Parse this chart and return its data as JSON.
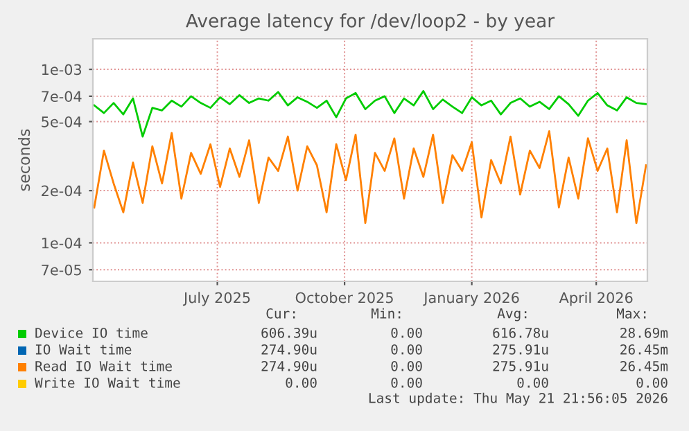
{
  "chart_data": {
    "type": "line",
    "title": "Average latency for /dev/loop2 - by year",
    "ylabel": "seconds",
    "log": "y",
    "grid": true,
    "legend": "bottom",
    "line_style": "solid",
    "marker": "none",
    "xlim": [
      "2025-04-02",
      "2026-05-08"
    ],
    "xticks": [
      {
        "value": "2025-07-01",
        "label": "July 2025"
      },
      {
        "value": "2025-10-01",
        "label": "October 2025"
      },
      {
        "value": "2026-01-01",
        "label": "January 2026"
      },
      {
        "value": "2026-04-01",
        "label": "April 2026"
      }
    ],
    "ylim": [
      6e-05,
      0.0015
    ],
    "yticks": [
      {
        "value": 7e-05,
        "label": "7e-05"
      },
      {
        "value": 0.0001,
        "label": "1e-04"
      },
      {
        "value": 0.0002,
        "label": "2e-04"
      },
      {
        "value": 0.0005,
        "label": "5e-04"
      },
      {
        "value": 0.0007,
        "label": "7e-04"
      },
      {
        "value": 0.001,
        "label": "1e-03"
      }
    ],
    "x": [
      "2025-04-03",
      "2025-04-10",
      "2025-04-17",
      "2025-04-24",
      "2025-05-01",
      "2025-05-08",
      "2025-05-15",
      "2025-05-22",
      "2025-05-29",
      "2025-06-05",
      "2025-06-12",
      "2025-06-19",
      "2025-06-26",
      "2025-07-03",
      "2025-07-10",
      "2025-07-17",
      "2025-07-24",
      "2025-07-31",
      "2025-08-07",
      "2025-08-14",
      "2025-08-21",
      "2025-08-28",
      "2025-09-04",
      "2025-09-11",
      "2025-09-18",
      "2025-09-25",
      "2025-10-02",
      "2025-10-09",
      "2025-10-16",
      "2025-10-23",
      "2025-10-30",
      "2025-11-06",
      "2025-11-13",
      "2025-11-20",
      "2025-11-27",
      "2025-12-04",
      "2025-12-11",
      "2025-12-18",
      "2025-12-25",
      "2026-01-01",
      "2026-01-08",
      "2026-01-15",
      "2026-01-22",
      "2026-01-29",
      "2026-02-05",
      "2026-02-12",
      "2026-02-19",
      "2026-02-26",
      "2026-03-05",
      "2026-03-12",
      "2026-03-19",
      "2026-03-26",
      "2026-04-02",
      "2026-04-09",
      "2026-04-16",
      "2026-04-23",
      "2026-04-30",
      "2026-05-07"
    ],
    "series": [
      {
        "name": "Device IO time",
        "color": "#00cc00",
        "values": [
          0.00062,
          0.00056,
          0.00064,
          0.00055,
          0.00068,
          0.00041,
          0.0006,
          0.00058,
          0.00066,
          0.00061,
          0.0007,
          0.00064,
          0.0006,
          0.00069,
          0.00063,
          0.00071,
          0.00064,
          0.00068,
          0.00066,
          0.00074,
          0.00062,
          0.00069,
          0.00065,
          0.0006,
          0.00066,
          0.00053,
          0.00068,
          0.00073,
          0.00059,
          0.00066,
          0.0007,
          0.00056,
          0.00068,
          0.00062,
          0.00075,
          0.00059,
          0.00067,
          0.00061,
          0.00056,
          0.00069,
          0.00062,
          0.00066,
          0.00055,
          0.00064,
          0.00068,
          0.00061,
          0.00065,
          0.00059,
          0.0007,
          0.00063,
          0.00054,
          0.00066,
          0.00073,
          0.00062,
          0.00058,
          0.00069,
          0.00064,
          0.00063
        ]
      },
      {
        "name": "IO Wait time",
        "color": "#0066b3",
        "values": [
          null,
          null,
          null,
          null,
          null,
          null,
          null,
          null,
          null,
          null,
          null,
          null,
          null,
          null,
          null,
          null,
          null,
          null,
          null,
          null,
          null,
          null,
          null,
          null,
          null,
          null,
          null,
          null,
          null,
          null,
          null,
          null,
          null,
          null,
          null,
          null,
          null,
          null,
          null,
          null,
          null,
          null,
          null,
          null,
          null,
          null,
          null,
          null,
          null,
          null,
          null,
          null,
          null,
          null,
          null,
          null,
          null,
          null
        ]
      },
      {
        "name": "Read IO Wait time",
        "color": "#ff8000",
        "values": [
          0.00016,
          0.00034,
          0.00022,
          0.00015,
          0.00029,
          0.00017,
          0.00036,
          0.00022,
          0.00043,
          0.00018,
          0.00033,
          0.00025,
          0.00037,
          0.00021,
          0.00035,
          0.00024,
          0.00039,
          0.00017,
          0.00031,
          0.00026,
          0.00041,
          0.0002,
          0.00036,
          0.00028,
          0.00015,
          0.00037,
          0.00023,
          0.00042,
          0.00013,
          0.00033,
          0.00026,
          0.0004,
          0.00018,
          0.00035,
          0.00024,
          0.00042,
          0.00017,
          0.00032,
          0.00026,
          0.00038,
          0.00014,
          0.0003,
          0.00022,
          0.00041,
          0.00019,
          0.00034,
          0.00027,
          0.00044,
          0.00016,
          0.00031,
          0.00018,
          0.0004,
          0.00026,
          0.00035,
          0.00015,
          0.00039,
          0.00013,
          0.00028
        ]
      },
      {
        "name": "Write IO Wait time",
        "color": "#ffcc00",
        "values": [
          null,
          null,
          null,
          null,
          null,
          null,
          null,
          null,
          null,
          null,
          null,
          null,
          null,
          null,
          null,
          null,
          null,
          null,
          null,
          null,
          null,
          null,
          null,
          null,
          null,
          null,
          null,
          null,
          null,
          null,
          null,
          null,
          null,
          null,
          null,
          null,
          null,
          null,
          null,
          null,
          null,
          null,
          null,
          null,
          null,
          null,
          null,
          null,
          null,
          null,
          null,
          null,
          null,
          null,
          null,
          null,
          null,
          null
        ]
      }
    ],
    "annotations": [
      "Cur:",
      "Min:",
      "Avg:",
      "Max:",
      "606.39u",
      "0.00",
      "616.78u",
      "28.69m",
      "274.90u",
      "0.00",
      "275.91u",
      "26.45m",
      "274.90u",
      "0.00",
      "275.91u",
      "26.45m",
      "0.00",
      "0.00",
      "0.00",
      "0.00",
      "Last update: Thu May 21 21:56:05 2026"
    ]
  }
}
